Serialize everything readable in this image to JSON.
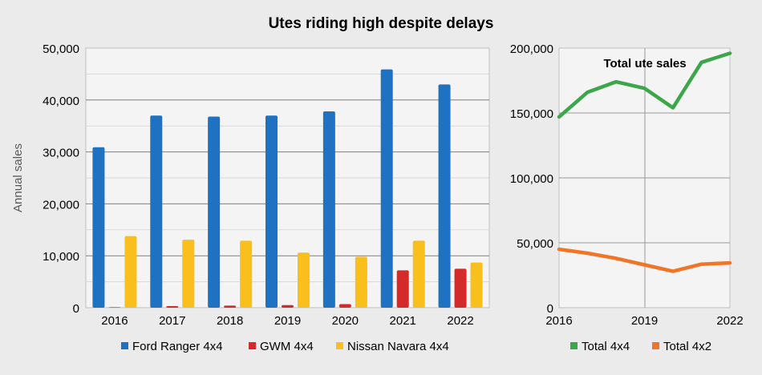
{
  "title": "Utes riding high despite delays",
  "colors": {
    "ford": "#1f72c1",
    "gwm": "#d62a2a",
    "navara": "#f8bf1d",
    "total4x4": "#3ea64a",
    "total4x2": "#ef7628"
  },
  "chart_data": [
    {
      "type": "bar",
      "ylabel": "Annual sales",
      "ylim": [
        0,
        50000
      ],
      "yticks": [
        "0",
        "10,000",
        "20,000",
        "30,000",
        "40,000",
        "50,000"
      ],
      "categories": [
        "2016",
        "2017",
        "2018",
        "2019",
        "2020",
        "2021",
        "2022"
      ],
      "series": [
        {
          "name": "Ford Ranger 4x4",
          "color": "#1f72c1",
          "values": [
            30900,
            37000,
            36800,
            37000,
            37800,
            45900,
            43000
          ]
        },
        {
          "name": "GWM 4x4",
          "color": "#d62a2a",
          "values": [
            100,
            300,
            400,
            500,
            700,
            7200,
            7500
          ]
        },
        {
          "name": "Nissan Navara 4x4",
          "color": "#f8bf1d",
          "values": [
            13800,
            13100,
            12900,
            10600,
            9800,
            12900,
            8700
          ]
        }
      ],
      "legend": "bottom"
    },
    {
      "type": "line",
      "annotation": "Total ute sales",
      "ylim": [
        0,
        200000
      ],
      "yticks": [
        "0",
        "50,000",
        "100,000",
        "150,000",
        "200,000"
      ],
      "xticks": [
        "2016",
        "2019",
        "2022"
      ],
      "x": [
        2016,
        2017,
        2018,
        2019,
        2020,
        2021,
        2022
      ],
      "series": [
        {
          "name": "Total 4x4",
          "color": "#3ea64a",
          "values": [
            147000,
            166000,
            174000,
            169000,
            154000,
            189000,
            196000
          ]
        },
        {
          "name": "Total 4x2",
          "color": "#ef7628",
          "values": [
            45000,
            42000,
            38000,
            33000,
            28000,
            33500,
            34500
          ]
        }
      ],
      "legend": "bottom"
    }
  ]
}
